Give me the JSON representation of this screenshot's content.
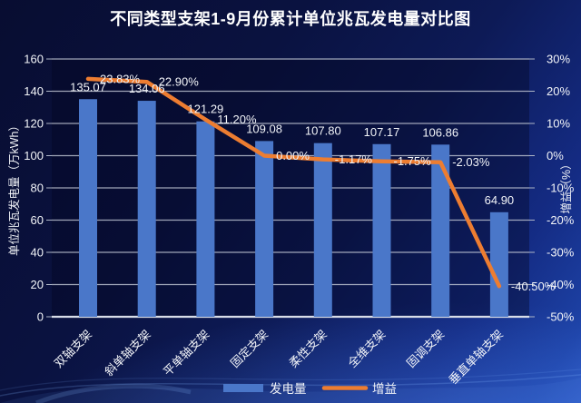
{
  "chart_data": {
    "type": "bar",
    "subtype": "combo-bar-line",
    "title": "不同类型支架1-9月份累计单位兆瓦发电量对比图",
    "categories": [
      "双轴支架",
      "斜单轴支架",
      "平单轴支架",
      "固定支架",
      "柔性支架",
      "全维支架",
      "固调支架",
      "垂直单轴支架"
    ],
    "series": [
      {
        "name": "发电量",
        "chart": "bar",
        "axis": "left",
        "color": "#4a77c9",
        "values": [
          135.07,
          134.06,
          121.29,
          109.08,
          107.8,
          107.17,
          106.86,
          64.9
        ],
        "labels": [
          "135.07",
          "134.06",
          "121.29",
          "109.08",
          "107.80",
          "107.17",
          "106.86",
          "64.90"
        ]
      },
      {
        "name": "增益",
        "chart": "line",
        "axis": "right",
        "color": "#ed7d31",
        "values": [
          23.83,
          22.9,
          11.2,
          0.0,
          -1.17,
          -1.75,
          -2.03,
          -40.5
        ],
        "labels": [
          "23.83%",
          "22.90%",
          "11.20%",
          "0.00%",
          "-1.17%",
          "-1.75%",
          "-2.03%",
          "-40.50%"
        ]
      }
    ],
    "left_axis": {
      "title": "单位兆瓦发电量（万kWh）",
      "min": 0,
      "max": 160,
      "step": 20,
      "ticks": [
        "160",
        "140",
        "120",
        "100",
        "80",
        "60",
        "40",
        "20",
        "0"
      ]
    },
    "right_axis": {
      "title": "增益（%）",
      "min": -50,
      "max": 30,
      "step": 10,
      "ticks": [
        "30%",
        "20%",
        "10%",
        "0%",
        "-10%",
        "-20%",
        "-30%",
        "-40%",
        "-50%"
      ]
    },
    "legend": {
      "position": "bottom",
      "items": [
        {
          "label": "发电量",
          "swatch": "bar",
          "color": "#4a77c9"
        },
        {
          "label": "增益",
          "swatch": "line",
          "color": "#ed7d31"
        }
      ]
    },
    "grid": "horizontal",
    "text_color": "#f2f4f8"
  }
}
